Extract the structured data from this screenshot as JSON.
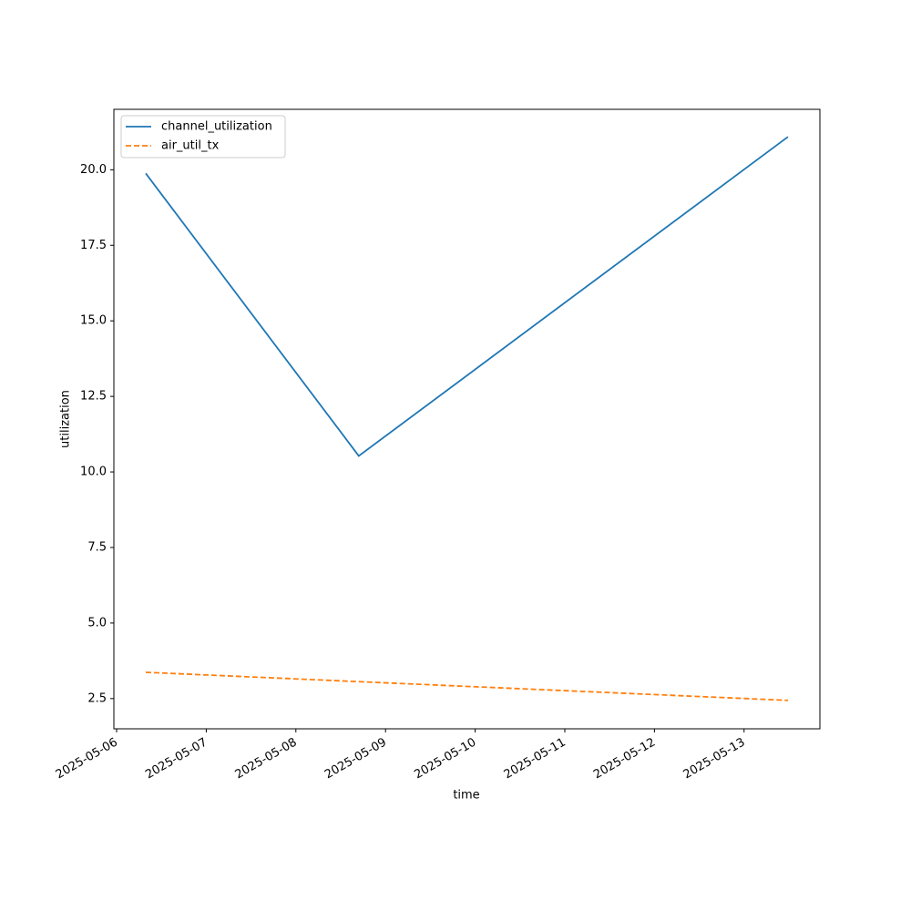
{
  "chart_data": {
    "type": "line",
    "x_label": "time",
    "y_label": "utilization",
    "x": [
      "2025-05-06T07:48",
      "2025-05-08T16:50",
      "2025-05-13T11:45"
    ],
    "series": [
      {
        "name": "channel_utilization",
        "color": "#1f77b4",
        "dash": "solid",
        "values": [
          19.88,
          10.53,
          21.09
        ]
      },
      {
        "name": "air_util_tx",
        "color": "#ff7f0e",
        "dash": "dashed",
        "values": [
          3.37,
          3.06,
          2.44
        ]
      }
    ],
    "xlim": [
      "2025-05-05T23:16",
      "2025-05-13T20:18"
    ],
    "xticks": [
      "2025-05-06",
      "2025-05-07",
      "2025-05-08",
      "2025-05-09",
      "2025-05-10",
      "2025-05-11",
      "2025-05-12",
      "2025-05-13"
    ],
    "ylim": [
      1.5,
      22.0
    ],
    "yticks": [
      2.5,
      {
        "value": 5,
        "label": "5.0"
      },
      7.5,
      {
        "value": 10,
        "label": "10.0"
      },
      12.5,
      {
        "value": 15,
        "label": "15.0"
      },
      17.5,
      {
        "value": 20,
        "label": "20.0"
      }
    ],
    "grid": false,
    "legend": "upper left"
  }
}
